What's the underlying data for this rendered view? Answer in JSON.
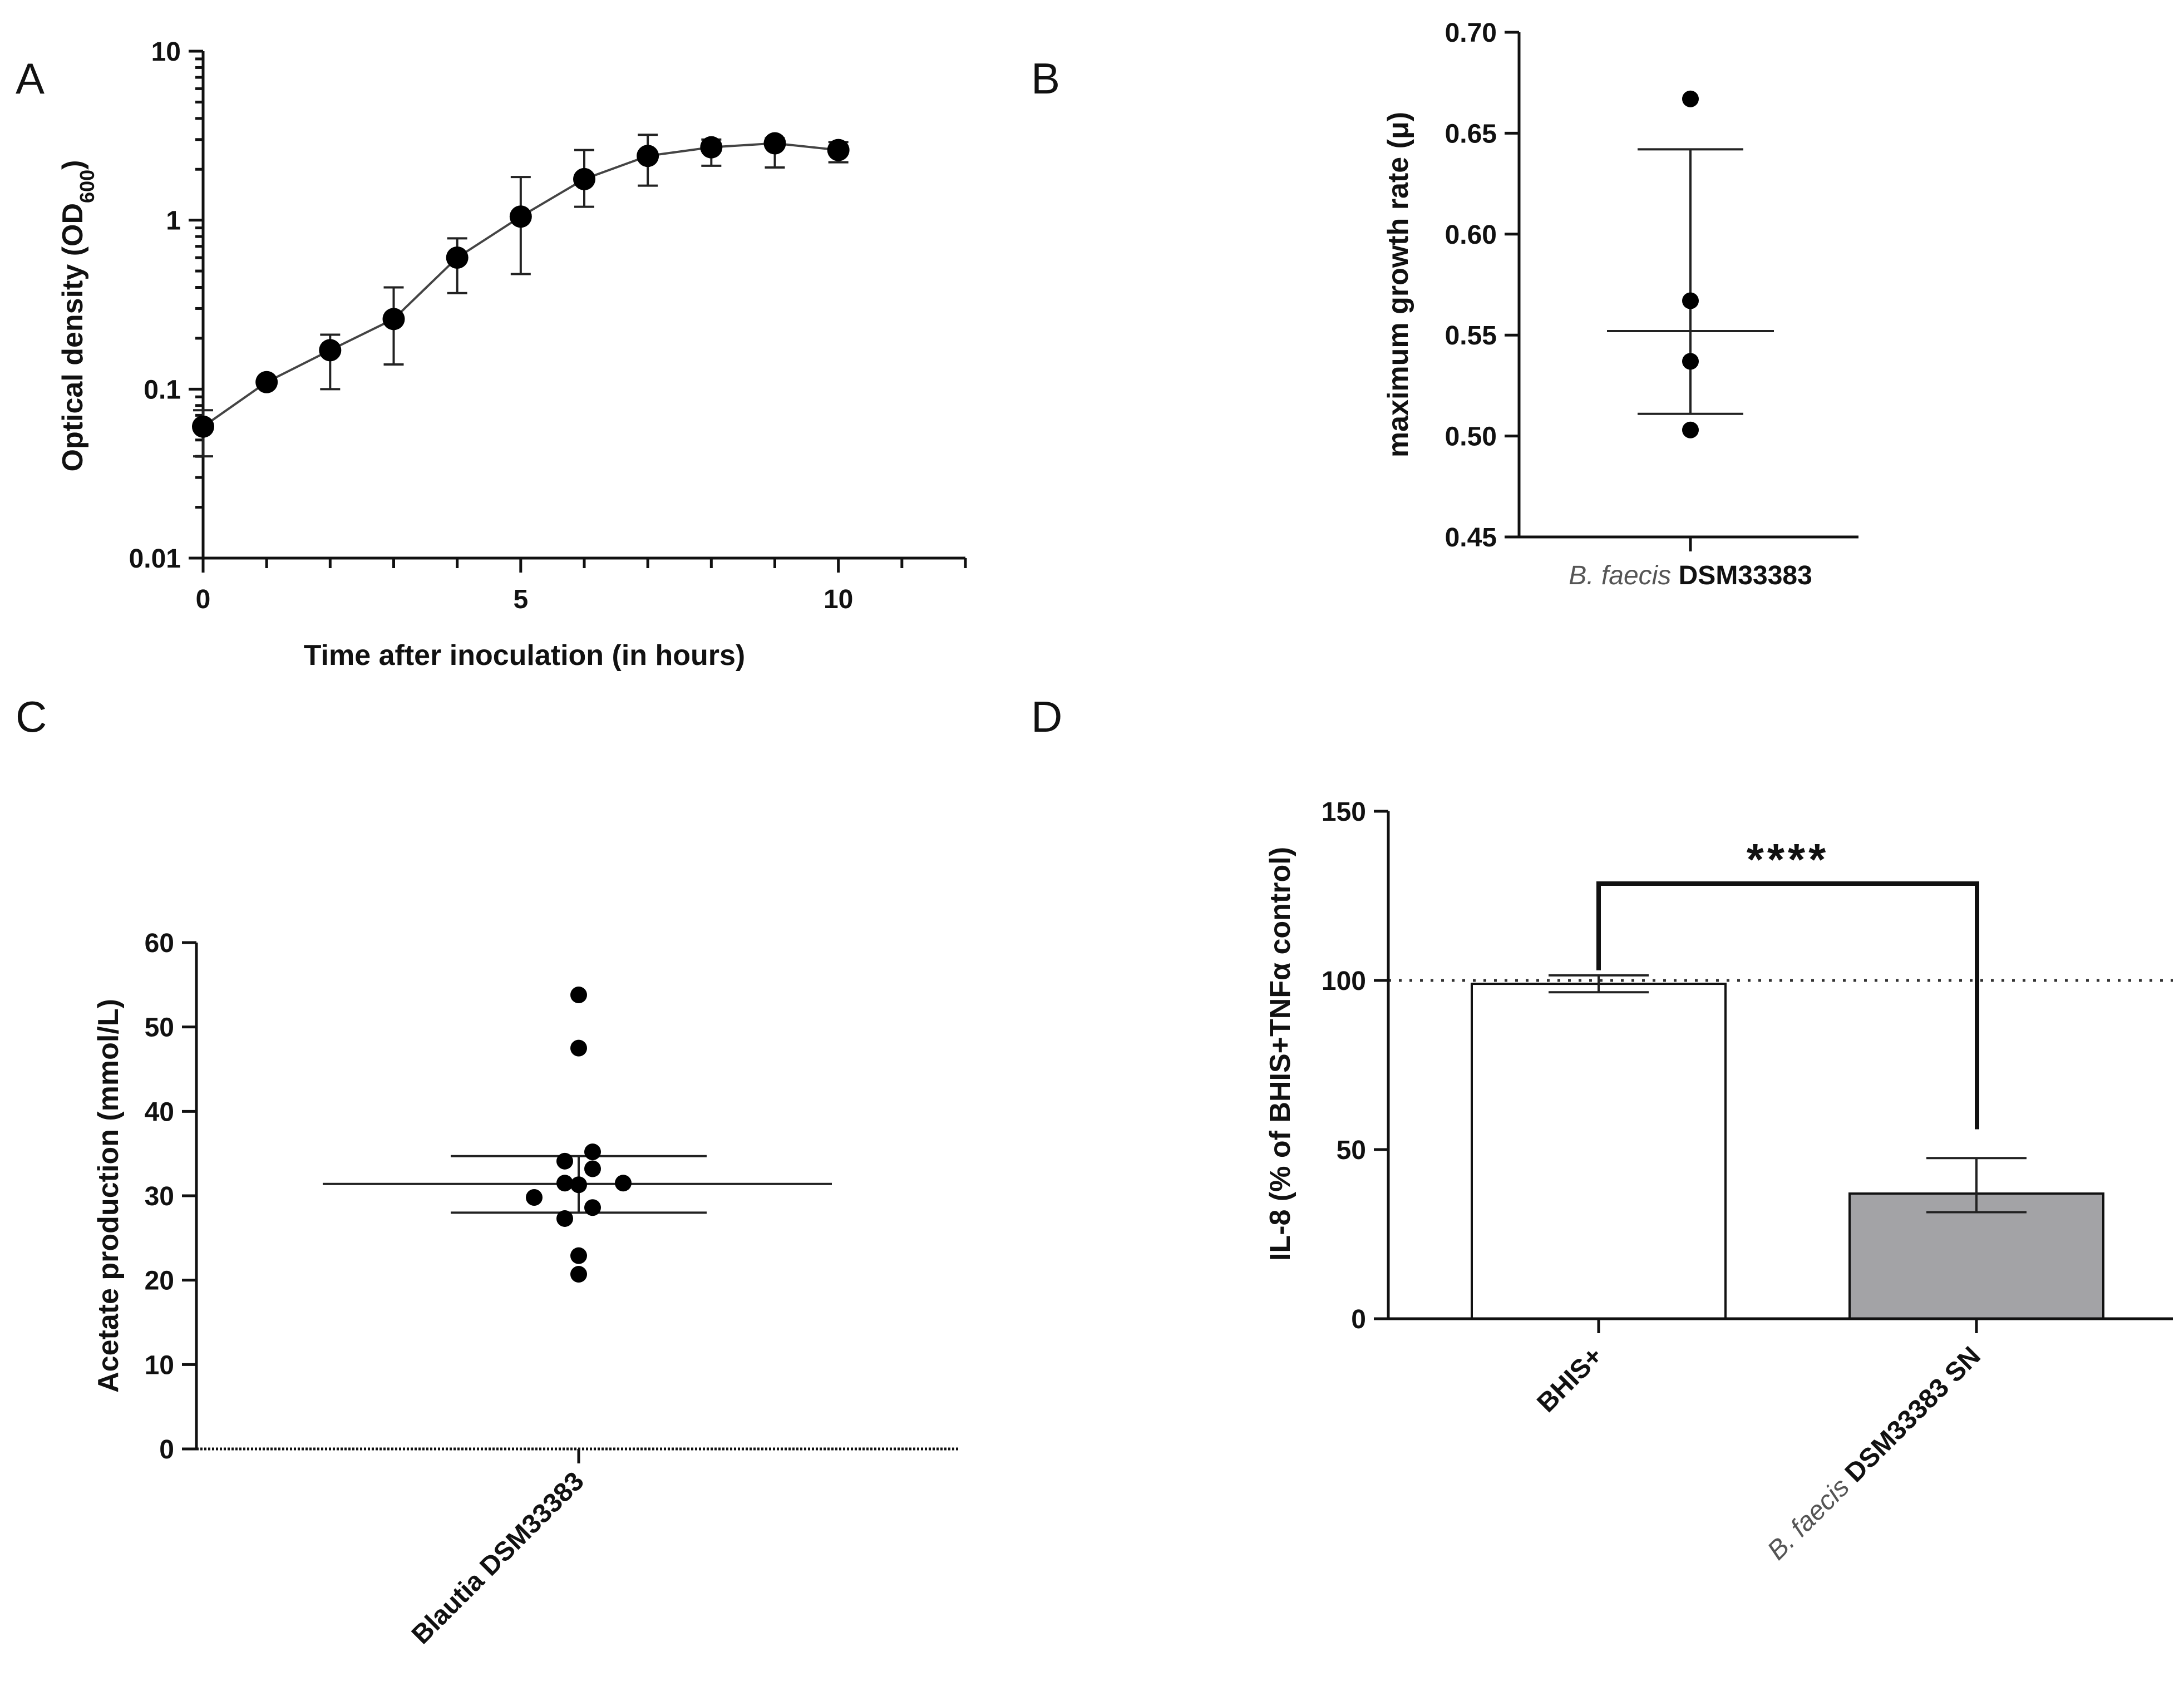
{
  "chart_data": [
    {
      "panel": "A",
      "type": "line",
      "xlabel": "Time after inoculation (in hours)",
      "ylabel": "Optical density (OD",
      "ylabel_sub": "600",
      "ylabel_end": ")",
      "yscale": "log",
      "xlim": [
        0,
        12
      ],
      "ylim": [
        0.01,
        10
      ],
      "x_ticks": [
        "0",
        "5",
        "10"
      ],
      "y_ticks": [
        "0.01",
        "0.1",
        "1",
        "10"
      ],
      "x": [
        0,
        1,
        2,
        3,
        4,
        5,
        6,
        7,
        8,
        9,
        10
      ],
      "values": [
        0.06,
        0.11,
        0.17,
        0.26,
        0.6,
        1.05,
        1.75,
        2.4,
        2.7,
        2.85,
        2.6
      ],
      "err_low": [
        0.04,
        0.11,
        0.1,
        0.14,
        0.37,
        0.48,
        1.2,
        1.6,
        2.1,
        2.05,
        2.2
      ],
      "err_high": [
        0.075,
        0.11,
        0.21,
        0.4,
        0.78,
        1.8,
        2.6,
        3.2,
        3.0,
        3.05,
        2.9
      ]
    },
    {
      "panel": "B",
      "type": "scatter",
      "ylabel": "maximum growth rate (μ)",
      "category_italic": "B. faecis",
      "category_rest": " DSM33383",
      "ylim": [
        0.45,
        0.7
      ],
      "y_ticks": [
        "0.45",
        "0.50",
        "0.55",
        "0.60",
        "0.65",
        "0.70"
      ],
      "points": [
        0.667,
        0.567,
        0.537,
        0.503
      ],
      "mean": 0.552,
      "err_low": 0.511,
      "err_high": 0.642
    },
    {
      "panel": "C",
      "type": "scatter",
      "ylabel": "Acetate production (mmol/L)",
      "category": "Blautia DSM33383",
      "ylim": [
        0,
        60
      ],
      "y_ticks": [
        "0",
        "10",
        "20",
        "30",
        "40",
        "50",
        "60"
      ],
      "points": [
        53.8,
        47.5,
        35.2,
        34.1,
        33.2,
        31.5,
        31.3,
        31.5,
        29.8,
        28.6,
        27.3,
        22.9,
        20.7
      ],
      "mean": 31.4,
      "err_low": 28.0,
      "err_high": 34.7
    },
    {
      "panel": "D",
      "type": "bar",
      "ylabel": "IL-8 (% of BHIS+TNFα control)",
      "ylim": [
        0,
        150
      ],
      "y_ticks": [
        "0",
        "50",
        "100",
        "150"
      ],
      "reference_line": 100,
      "categories": [
        {
          "plain": "BHIS+"
        },
        {
          "italic": "B. faecis",
          "rest": " DSM33383 SN"
        }
      ],
      "values": [
        99.0,
        37.0
      ],
      "err_low": [
        96.5,
        31.5
      ],
      "err_high": [
        101.5,
        47.5
      ],
      "bar_colors": [
        "#ffffff",
        "#a3a3a6"
      ],
      "significance": "****"
    }
  ],
  "panels": {
    "a": "A",
    "b": "B",
    "c": "C",
    "d": "D"
  }
}
